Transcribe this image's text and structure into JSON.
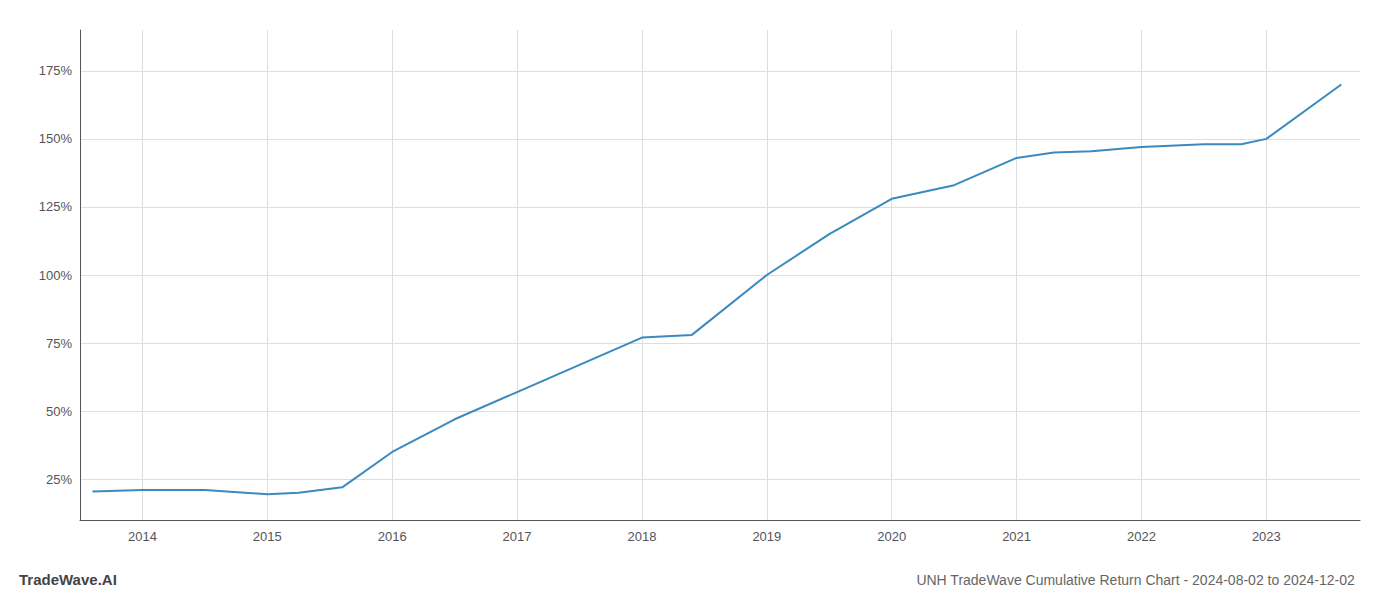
{
  "chart_data": {
    "type": "line",
    "title": "UNH TradeWave Cumulative Return Chart - 2024-08-02 to 2024-12-02",
    "annotations": [
      "TradeWave.AI"
    ],
    "x": [
      2013.6,
      2014.0,
      2014.5,
      2015.0,
      2015.25,
      2015.6,
      2016.0,
      2016.5,
      2017.0,
      2017.5,
      2018.0,
      2018.4,
      2019.0,
      2019.5,
      2020.0,
      2020.5,
      2021.0,
      2021.3,
      2021.6,
      2022.0,
      2022.5,
      2022.8,
      2023.0,
      2023.6
    ],
    "values": [
      20.5,
      21,
      21,
      19.5,
      20,
      22,
      35,
      47,
      57,
      67,
      77,
      78,
      100,
      115,
      128,
      133,
      143,
      145,
      145.5,
      147,
      148,
      148,
      150,
      170
    ],
    "color": "#3a8abf",
    "xlim": [
      2013.5,
      2023.75
    ],
    "ylim": [
      10,
      190
    ],
    "xticks": [
      2014,
      2015,
      2016,
      2017,
      2018,
      2019,
      2020,
      2021,
      2022,
      2023
    ],
    "yticks": [
      {
        "value": 25,
        "label": "25%"
      },
      {
        "value": 50,
        "label": "50%"
      },
      {
        "value": 75,
        "label": "75%"
      },
      {
        "value": 100,
        "label": "100%"
      },
      {
        "value": 125,
        "label": "125%"
      },
      {
        "value": 150,
        "label": "150%"
      },
      {
        "value": 175,
        "label": "175%"
      }
    ],
    "grid": true
  }
}
